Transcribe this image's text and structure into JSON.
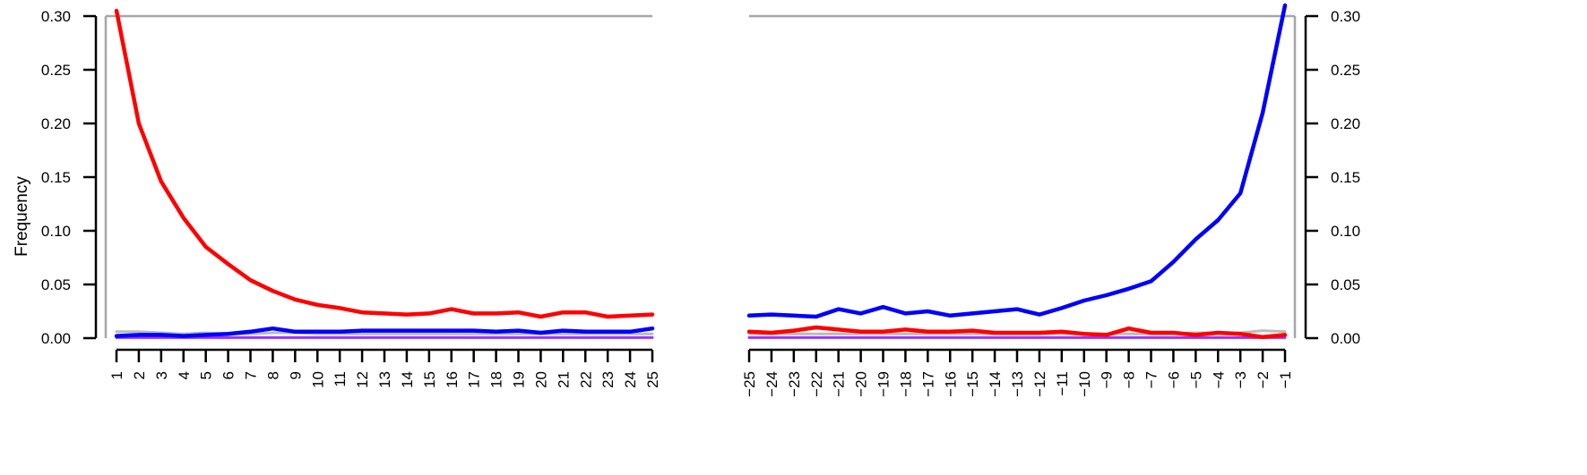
{
  "chart_data": [
    {
      "type": "line",
      "ylabel": "Frequency",
      "ylim": [
        0,
        0.3
      ],
      "yticks": [
        "0.00",
        "0.05",
        "0.10",
        "0.15",
        "0.20",
        "0.25",
        "0.30"
      ],
      "x": [
        "1",
        "2",
        "3",
        "4",
        "5",
        "6",
        "7",
        "8",
        "9",
        "10",
        "11",
        "12",
        "13",
        "14",
        "15",
        "16",
        "17",
        "18",
        "19",
        "20",
        "21",
        "22",
        "23",
        "24",
        "25"
      ],
      "series": [
        {
          "color": "#ff0000",
          "values": [
            0.305,
            0.2,
            0.146,
            0.112,
            0.085,
            0.069,
            0.054,
            0.044,
            0.036,
            0.031,
            0.028,
            0.024,
            0.023,
            0.022,
            0.023,
            0.027,
            0.023,
            0.023,
            0.024,
            0.02,
            0.024,
            0.024,
            0.02,
            0.021,
            0.022
          ]
        },
        {
          "color": "#0000ff",
          "values": [
            0.002,
            0.003,
            0.003,
            0.002,
            0.003,
            0.004,
            0.006,
            0.009,
            0.006,
            0.006,
            0.006,
            0.007,
            0.007,
            0.007,
            0.007,
            0.007,
            0.007,
            0.006,
            0.007,
            0.005,
            0.007,
            0.006,
            0.006,
            0.006,
            0.009
          ]
        },
        {
          "color": "#bbbbbb",
          "values": [
            0.006,
            0.006,
            0.005,
            0.004,
            0.005,
            0.004,
            0.004,
            0.005,
            0.005,
            0.004,
            0.004,
            0.004,
            0.004,
            0.004,
            0.004,
            0.004,
            0.004,
            0.004,
            0.004,
            0.004,
            0.004,
            0.004,
            0.004,
            0.004,
            0.004
          ]
        },
        {
          "color": "#9933ff",
          "values": [
            0.0005,
            0.0005,
            0.0005,
            0.0005,
            0.0005,
            0.0005,
            0.0005,
            0.0005,
            0.0005,
            0.0005,
            0.0005,
            0.0005,
            0.0005,
            0.0005,
            0.0005,
            0.0005,
            0.0005,
            0.0005,
            0.0005,
            0.0005,
            0.0005,
            0.0005,
            0.0005,
            0.0005,
            0.0005
          ]
        }
      ]
    },
    {
      "type": "line",
      "ylim": [
        0,
        0.3
      ],
      "yticks": [
        "0.00",
        "0.05",
        "0.10",
        "0.15",
        "0.20",
        "0.25",
        "0.30"
      ],
      "x": [
        "−25",
        "−24",
        "−23",
        "−22",
        "−21",
        "−20",
        "−19",
        "−18",
        "−17",
        "−16",
        "−15",
        "−14",
        "−13",
        "−12",
        "−11",
        "−10",
        "−9",
        "−8",
        "−7",
        "−6",
        "−5",
        "−4",
        "−3",
        "−2",
        "−1"
      ],
      "series": [
        {
          "color": "#0000ff",
          "values": [
            0.021,
            0.022,
            0.021,
            0.02,
            0.027,
            0.023,
            0.029,
            0.023,
            0.025,
            0.021,
            0.023,
            0.025,
            0.027,
            0.022,
            0.028,
            0.035,
            0.04,
            0.046,
            0.053,
            0.071,
            0.092,
            0.11,
            0.135,
            0.21,
            0.31
          ]
        },
        {
          "color": "#ff0000",
          "values": [
            0.006,
            0.005,
            0.007,
            0.01,
            0.008,
            0.006,
            0.006,
            0.008,
            0.006,
            0.006,
            0.007,
            0.005,
            0.005,
            0.005,
            0.006,
            0.004,
            0.003,
            0.009,
            0.005,
            0.005,
            0.003,
            0.005,
            0.004,
            0.001,
            0.003
          ]
        },
        {
          "color": "#bbbbbb",
          "values": [
            0.004,
            0.004,
            0.004,
            0.004,
            0.004,
            0.004,
            0.004,
            0.004,
            0.004,
            0.004,
            0.004,
            0.004,
            0.004,
            0.004,
            0.004,
            0.004,
            0.004,
            0.004,
            0.004,
            0.004,
            0.005,
            0.005,
            0.005,
            0.007,
            0.006
          ]
        },
        {
          "color": "#9933ff",
          "values": [
            0.0005,
            0.0005,
            0.0005,
            0.0005,
            0.0005,
            0.0005,
            0.0005,
            0.0005,
            0.0005,
            0.0005,
            0.0005,
            0.0005,
            0.0005,
            0.0005,
            0.0005,
            0.0005,
            0.0005,
            0.0005,
            0.0005,
            0.0005,
            0.0005,
            0.0005,
            0.0005,
            0.0005,
            0.0005
          ]
        }
      ]
    }
  ]
}
